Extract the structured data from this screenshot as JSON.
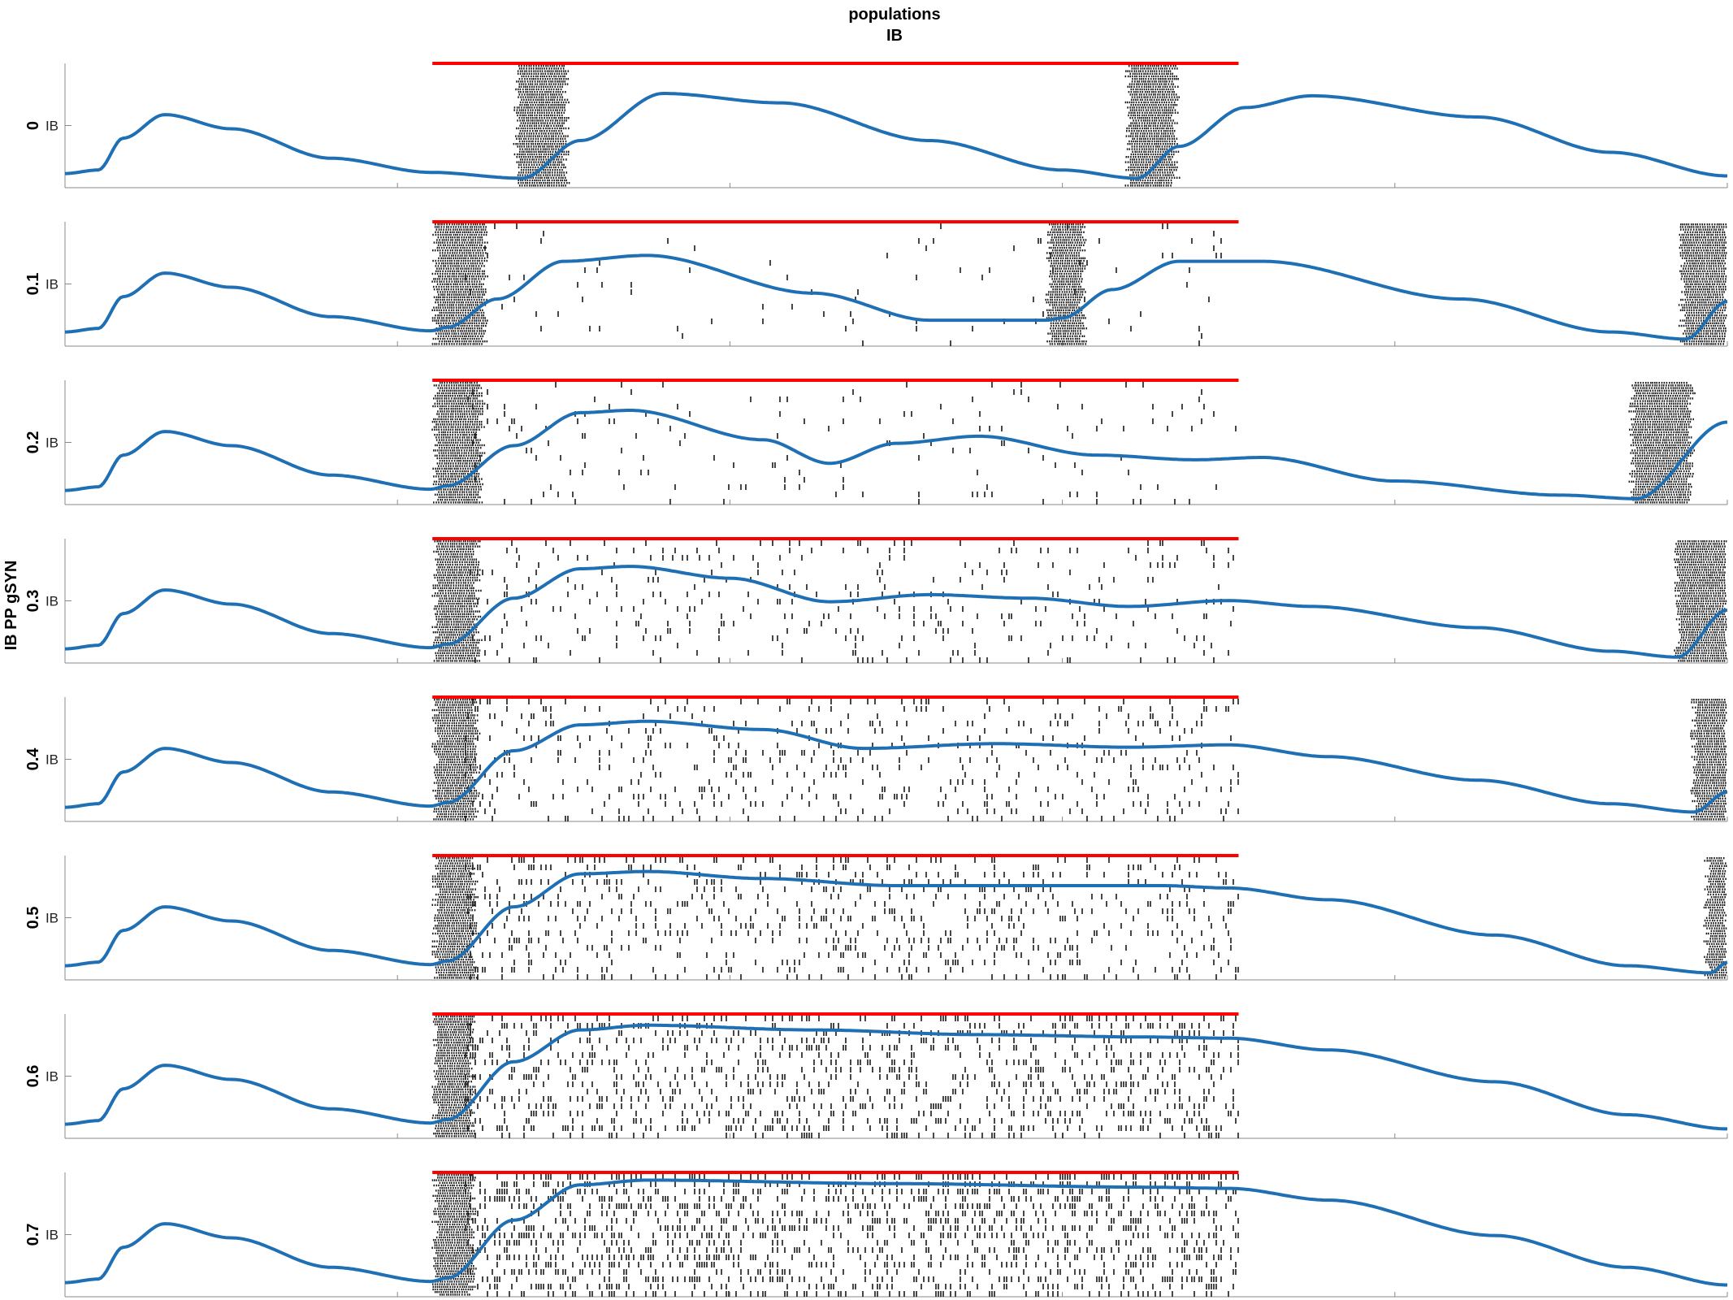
{
  "figure": {
    "title_line1": "populations",
    "title_line2": "IB",
    "side_label": "IB PP gSYN"
  },
  "colors": {
    "trace": "#1f6fb4",
    "stimulus_bar": "#ff0000",
    "raster": "#1a1a1a",
    "axis": "#888888"
  },
  "chart_data": {
    "type": "line",
    "description_kind": "raster-with-mean-trace",
    "x_range": [
      0,
      100
    ],
    "stimulus": {
      "start": 22.1,
      "end": 70.6
    },
    "y_tick_label": "IB",
    "grid": false,
    "series": [
      {
        "label": "0",
        "trace_points": [
          [
            0,
            0.12
          ],
          [
            2,
            0.15
          ],
          [
            3.5,
            0.42
          ],
          [
            6,
            0.62
          ],
          [
            10,
            0.5
          ],
          [
            16,
            0.25
          ],
          [
            22,
            0.13
          ],
          [
            27.5,
            0.08
          ],
          [
            31,
            0.4
          ],
          [
            36,
            0.8
          ],
          [
            43,
            0.72
          ],
          [
            52,
            0.4
          ],
          [
            60,
            0.15
          ],
          [
            64.5,
            0.08
          ],
          [
            67,
            0.35
          ],
          [
            71,
            0.68
          ],
          [
            75,
            0.78
          ],
          [
            85,
            0.6
          ],
          [
            93,
            0.3
          ],
          [
            100,
            0.1
          ]
        ],
        "bursts": [
          [
            27.2,
            30.1
          ],
          [
            64.0,
            66.8
          ]
        ]
      },
      {
        "label": "0.1",
        "trace_points": [
          [
            0,
            0.12
          ],
          [
            2,
            0.15
          ],
          [
            3.5,
            0.42
          ],
          [
            6,
            0.62
          ],
          [
            10,
            0.5
          ],
          [
            16,
            0.25
          ],
          [
            22,
            0.13
          ],
          [
            23,
            0.16
          ],
          [
            26,
            0.4
          ],
          [
            30,
            0.72
          ],
          [
            35,
            0.77
          ],
          [
            45,
            0.45
          ],
          [
            52,
            0.22
          ],
          [
            59,
            0.22
          ],
          [
            60,
            0.24
          ],
          [
            63,
            0.48
          ],
          [
            67,
            0.72
          ],
          [
            72,
            0.72
          ],
          [
            84,
            0.4
          ],
          [
            93,
            0.12
          ],
          [
            97.5,
            0.06
          ],
          [
            100,
            0.38
          ]
        ],
        "bursts": [
          [
            22.3,
            25.2
          ],
          [
            59.2,
            61.2
          ],
          [
            97.3,
            100
          ]
        ]
      },
      {
        "label": "0.2",
        "trace_points": [
          [
            0,
            0.12
          ],
          [
            2,
            0.15
          ],
          [
            3.5,
            0.42
          ],
          [
            6,
            0.62
          ],
          [
            10,
            0.5
          ],
          [
            16,
            0.25
          ],
          [
            22,
            0.13
          ],
          [
            23,
            0.16
          ],
          [
            27,
            0.5
          ],
          [
            31,
            0.78
          ],
          [
            34,
            0.8
          ],
          [
            42,
            0.55
          ],
          [
            46,
            0.35
          ],
          [
            50,
            0.52
          ],
          [
            55,
            0.58
          ],
          [
            62,
            0.42
          ],
          [
            68,
            0.38
          ],
          [
            72,
            0.4
          ],
          [
            80,
            0.2
          ],
          [
            90,
            0.08
          ],
          [
            94.5,
            0.05
          ],
          [
            100,
            0.7
          ]
        ],
        "bursts": [
          [
            22.3,
            25.0
          ],
          [
            94.3,
            97.8
          ]
        ]
      },
      {
        "label": "0.3",
        "trace_points": [
          [
            0,
            0.12
          ],
          [
            2,
            0.15
          ],
          [
            3.5,
            0.42
          ],
          [
            6,
            0.62
          ],
          [
            10,
            0.5
          ],
          [
            16,
            0.25
          ],
          [
            22,
            0.13
          ],
          [
            23,
            0.16
          ],
          [
            27,
            0.55
          ],
          [
            31,
            0.8
          ],
          [
            34,
            0.82
          ],
          [
            40,
            0.72
          ],
          [
            46,
            0.52
          ],
          [
            52,
            0.58
          ],
          [
            58,
            0.55
          ],
          [
            64,
            0.48
          ],
          [
            70,
            0.53
          ],
          [
            75,
            0.48
          ],
          [
            85,
            0.3
          ],
          [
            93,
            0.1
          ],
          [
            97,
            0.05
          ],
          [
            100,
            0.45
          ]
        ],
        "bursts": [
          [
            22.3,
            24.8
          ],
          [
            97.0,
            100
          ]
        ]
      },
      {
        "label": "0.4",
        "trace_points": [
          [
            0,
            0.12
          ],
          [
            2,
            0.15
          ],
          [
            3.5,
            0.42
          ],
          [
            6,
            0.62
          ],
          [
            10,
            0.5
          ],
          [
            16,
            0.25
          ],
          [
            22,
            0.13
          ],
          [
            23,
            0.16
          ],
          [
            27,
            0.6
          ],
          [
            31,
            0.82
          ],
          [
            35,
            0.85
          ],
          [
            42,
            0.78
          ],
          [
            48,
            0.62
          ],
          [
            56,
            0.66
          ],
          [
            64,
            0.63
          ],
          [
            70,
            0.65
          ],
          [
            76,
            0.55
          ],
          [
            85,
            0.35
          ],
          [
            93,
            0.15
          ],
          [
            98,
            0.08
          ],
          [
            100,
            0.25
          ]
        ],
        "bursts": [
          [
            22.3,
            24.7
          ],
          [
            98.0,
            100
          ]
        ]
      },
      {
        "label": "0.5",
        "trace_points": [
          [
            0,
            0.12
          ],
          [
            2,
            0.15
          ],
          [
            3.5,
            0.42
          ],
          [
            6,
            0.62
          ],
          [
            10,
            0.5
          ],
          [
            16,
            0.25
          ],
          [
            22,
            0.13
          ],
          [
            23,
            0.16
          ],
          [
            27,
            0.62
          ],
          [
            31,
            0.9
          ],
          [
            35,
            0.92
          ],
          [
            42,
            0.86
          ],
          [
            50,
            0.8
          ],
          [
            58,
            0.8
          ],
          [
            66,
            0.8
          ],
          [
            70,
            0.78
          ],
          [
            76,
            0.68
          ],
          [
            86,
            0.38
          ],
          [
            94,
            0.12
          ],
          [
            99,
            0.06
          ],
          [
            100,
            0.15
          ]
        ],
        "bursts": [
          [
            22.3,
            24.6
          ],
          [
            98.8,
            100
          ]
        ]
      },
      {
        "label": "0.6",
        "trace_points": [
          [
            0,
            0.12
          ],
          [
            2,
            0.15
          ],
          [
            3.5,
            0.42
          ],
          [
            6,
            0.62
          ],
          [
            10,
            0.5
          ],
          [
            16,
            0.25
          ],
          [
            22,
            0.13
          ],
          [
            23,
            0.16
          ],
          [
            27,
            0.65
          ],
          [
            31,
            0.92
          ],
          [
            35,
            0.96
          ],
          [
            45,
            0.92
          ],
          [
            55,
            0.88
          ],
          [
            65,
            0.86
          ],
          [
            70,
            0.85
          ],
          [
            76,
            0.75
          ],
          [
            86,
            0.48
          ],
          [
            94,
            0.2
          ],
          [
            100,
            0.08
          ]
        ],
        "bursts": [
          [
            22.3,
            24.5
          ]
        ]
      },
      {
        "label": "0.7",
        "trace_points": [
          [
            0,
            0.12
          ],
          [
            2,
            0.15
          ],
          [
            3.5,
            0.42
          ],
          [
            6,
            0.62
          ],
          [
            10,
            0.5
          ],
          [
            16,
            0.25
          ],
          [
            22,
            0.13
          ],
          [
            23,
            0.16
          ],
          [
            27,
            0.65
          ],
          [
            31,
            0.95
          ],
          [
            35,
            0.99
          ],
          [
            50,
            0.96
          ],
          [
            65,
            0.93
          ],
          [
            70,
            0.92
          ],
          [
            76,
            0.82
          ],
          [
            86,
            0.52
          ],
          [
            94,
            0.25
          ],
          [
            100,
            0.1
          ]
        ],
        "bursts": [
          [
            22.3,
            24.5
          ]
        ]
      }
    ]
  }
}
